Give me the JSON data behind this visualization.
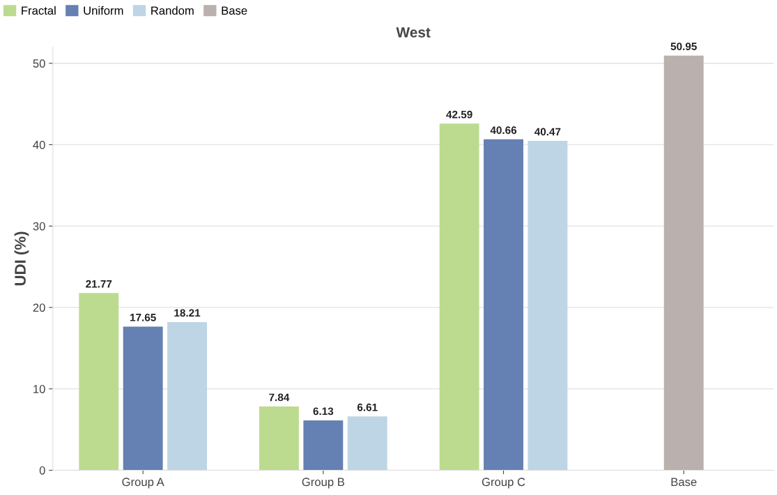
{
  "chart_data": {
    "type": "bar",
    "title": "West",
    "ylabel": "UDI (%)",
    "categories": [
      "Group A",
      "Group B",
      "Group C",
      "Base"
    ],
    "series": [
      {
        "name": "Fractal",
        "color": "#bcdb8f",
        "values": [
          21.77,
          7.84,
          42.59,
          null
        ]
      },
      {
        "name": "Uniform",
        "color": "#6580b2",
        "values": [
          17.65,
          6.13,
          40.66,
          null
        ]
      },
      {
        "name": "Random",
        "color": "#bed5e6",
        "values": [
          18.21,
          6.61,
          40.47,
          null
        ]
      },
      {
        "name": "Base",
        "color": "#bab0ad",
        "values": [
          null,
          null,
          null,
          50.95
        ]
      }
    ],
    "ylim": [
      0,
      52
    ],
    "yticks": [
      0,
      10,
      20,
      30,
      40,
      50
    ],
    "grid": "y",
    "legend": "top left",
    "data_labels": true
  }
}
